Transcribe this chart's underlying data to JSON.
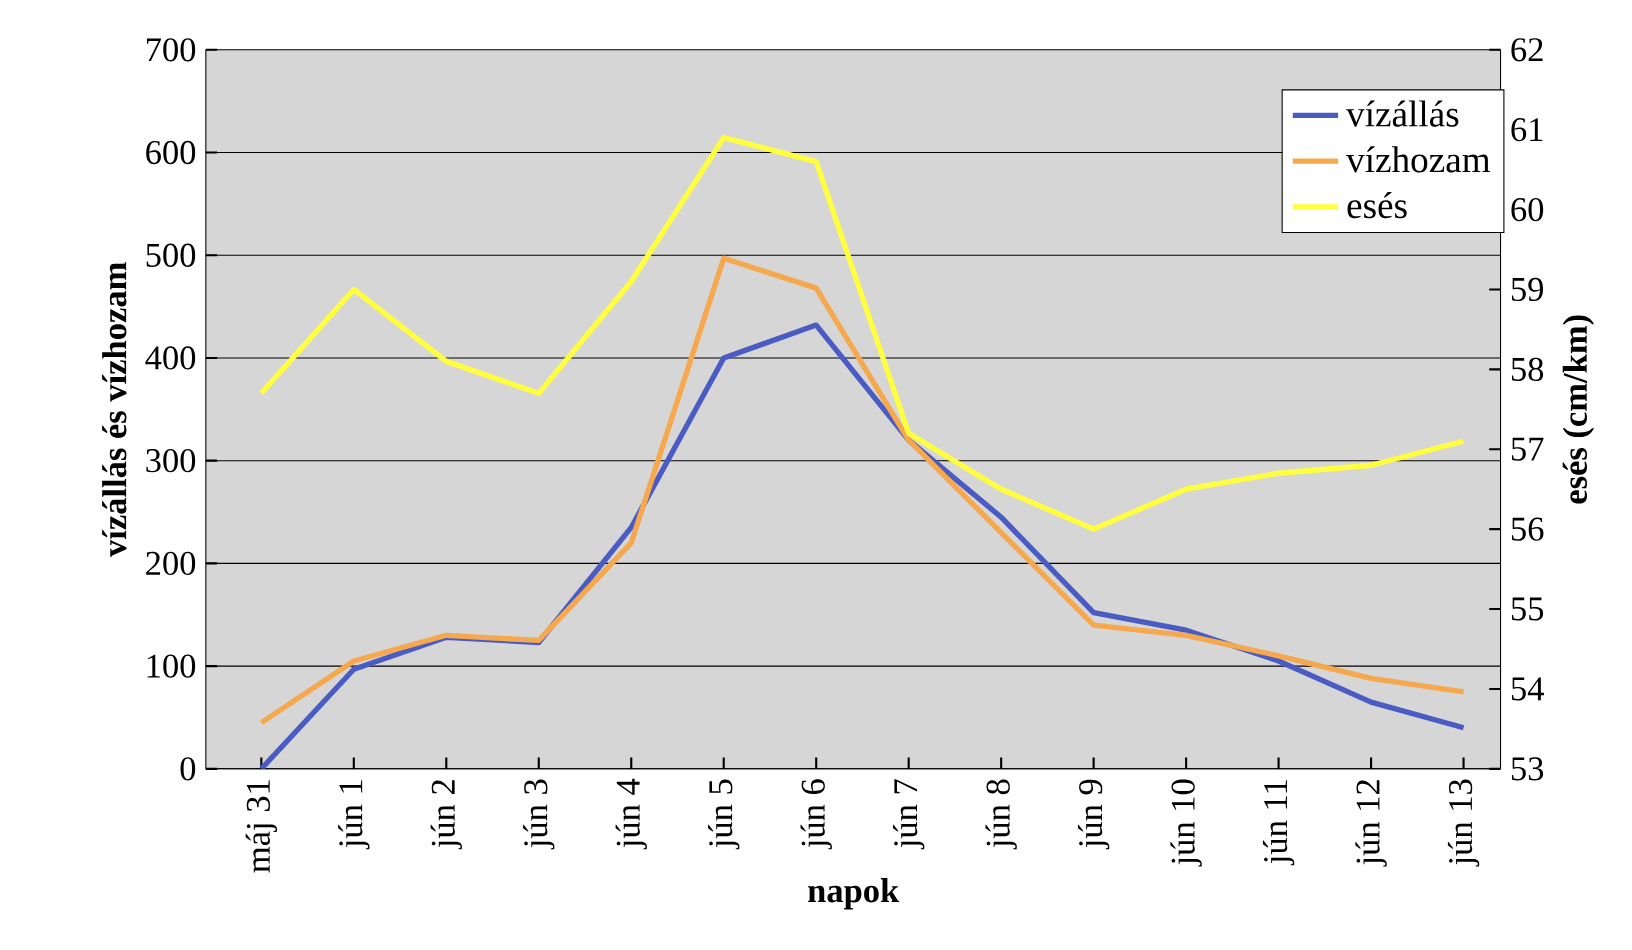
{
  "chart_data": {
    "type": "line",
    "categories": [
      "máj 31",
      "jún 1",
      "jún 2",
      "jún 3",
      "jún 4",
      "jún 5",
      "jún 6",
      "jún 7",
      "jún 8",
      "jún 9",
      "jún 10",
      "jún 11",
      "jún 12",
      "jún 13"
    ],
    "series": [
      {
        "name": "vízállás",
        "color": "#4a5cc4",
        "values": [
          0,
          97,
          128,
          123,
          235,
          400,
          432,
          320,
          245,
          152,
          135,
          105,
          65,
          40
        ]
      },
      {
        "name": "vízhozam",
        "color": "#f5a84e",
        "values": [
          45,
          105,
          130,
          125,
          220,
          497,
          468,
          320,
          230,
          140,
          130,
          110,
          88,
          75
        ]
      },
      {
        "name": "esés",
        "color": "#ffff40",
        "axis": "y2",
        "values": [
          57.7,
          59.0,
          58.1,
          57.7,
          59.1,
          60.9,
          60.6,
          57.2,
          56.5,
          56.0,
          56.5,
          56.7,
          56.8,
          57.1
        ]
      }
    ],
    "xlabel": "napok",
    "ylabel": "vízállás és vízhozam",
    "y2label": "esés (cm/km)",
    "ylim": [
      0,
      700
    ],
    "yticks": [
      0,
      100,
      200,
      300,
      400,
      500,
      600,
      700
    ],
    "y2lim": [
      53,
      62
    ],
    "y2ticks": [
      53,
      54,
      55,
      56,
      57,
      58,
      59,
      60,
      61,
      62
    ],
    "grid": "y",
    "legend": "top right"
  }
}
